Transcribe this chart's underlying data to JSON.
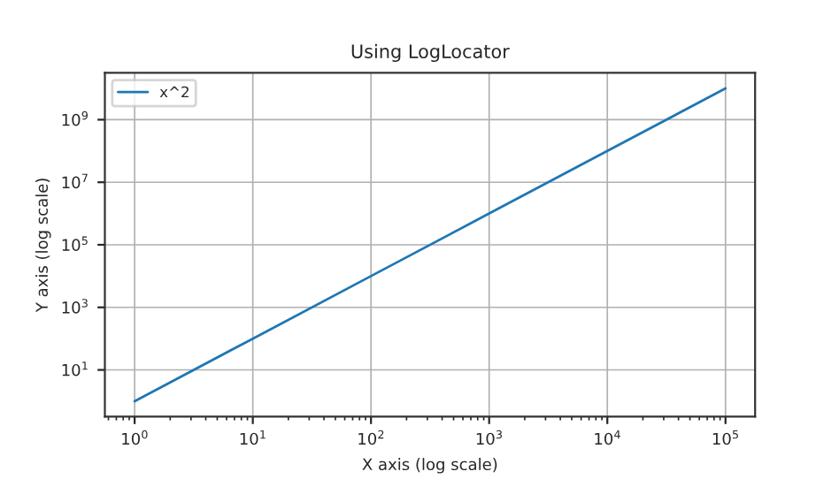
{
  "chart_data": {
    "type": "line",
    "title": "Using LogLocator",
    "xlabel": "X axis (log scale)",
    "ylabel": "Y axis (log scale)",
    "x": [
      1,
      10,
      100,
      1000,
      10000,
      100000
    ],
    "series": [
      {
        "name": "x^2",
        "color": "#1f77b4",
        "values": [
          1,
          100,
          10000,
          1000000,
          100000000,
          10000000000
        ]
      }
    ],
    "log": "xy",
    "xlim": [
      0.56,
      178000
    ],
    "ylim": [
      0.32,
      31600000000
    ],
    "xticks": [
      {
        "value": 1,
        "label": "10$^{0}$"
      },
      {
        "value": 10,
        "label": "10$^{1}$"
      },
      {
        "value": 100,
        "label": "10$^{2}$"
      },
      {
        "value": 1000,
        "label": "10$^{3}$"
      },
      {
        "value": 10000,
        "label": "10$^{4}$"
      },
      {
        "value": 100000,
        "label": "10$^{5}$"
      }
    ],
    "yticks": [
      {
        "value": 10,
        "label": "10$^{1}$"
      },
      {
        "value": 1000,
        "label": "10$^{3}$"
      },
      {
        "value": 100000,
        "label": "10$^{5}$"
      },
      {
        "value": 10000000,
        "label": "10$^{7}$"
      },
      {
        "value": 1000000000,
        "label": "10$^{9}$"
      }
    ],
    "grid": true,
    "legend": "top left",
    "marker": "none",
    "line_style": "solid"
  }
}
